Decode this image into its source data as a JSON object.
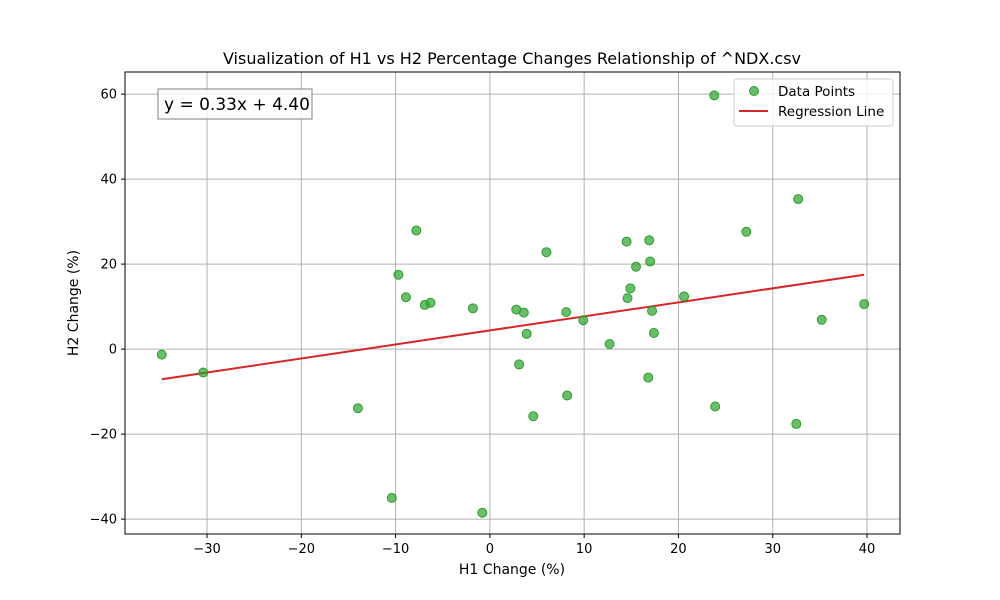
{
  "chart_data": {
    "type": "scatter",
    "title": "Visualization of H1 vs H2 Percentage Changes Relationship of ^NDX.csv",
    "xlabel": "H1 Change (%)",
    "ylabel": "H2 Change (%)",
    "xlim": [
      -38.7,
      43.5
    ],
    "ylim": [
      -43.5,
      65.2
    ],
    "xticks": [
      -30,
      -20,
      -10,
      0,
      10,
      20,
      30,
      40
    ],
    "yticks": [
      -40,
      -20,
      0,
      20,
      40,
      60
    ],
    "grid": true,
    "legend_position": "top-right",
    "equation_label": "y = 0.33x + 4.40",
    "colors": {
      "points": "#2ca02c",
      "regression": "#d62728"
    },
    "series": [
      {
        "name": "Data Points",
        "kind": "scatter",
        "x": [
          -34.8,
          -30.4,
          -14.0,
          -10.4,
          -9.7,
          -8.9,
          -7.8,
          -6.9,
          -6.3,
          -1.8,
          -0.8,
          2.8,
          3.1,
          3.6,
          3.9,
          4.6,
          6.0,
          8.1,
          8.2,
          9.9,
          12.7,
          14.5,
          14.6,
          14.9,
          15.5,
          16.8,
          16.9,
          17.0,
          17.2,
          17.4,
          20.6,
          23.8,
          23.9,
          27.2,
          32.5,
          32.7,
          35.2,
          39.7
        ],
        "y": [
          -1.3,
          -5.5,
          -13.9,
          -35.0,
          17.5,
          12.2,
          27.9,
          10.4,
          10.9,
          9.6,
          -38.5,
          9.3,
          -3.6,
          8.6,
          3.6,
          -15.8,
          22.8,
          8.7,
          -10.9,
          6.8,
          1.2,
          25.3,
          12.0,
          14.3,
          19.4,
          -6.7,
          25.6,
          20.6,
          9.0,
          3.8,
          12.4,
          59.7,
          -13.5,
          27.6,
          -17.6,
          35.3,
          6.9,
          10.6
        ]
      },
      {
        "name": "Regression Line",
        "kind": "line",
        "slope": 0.33,
        "intercept": 4.4,
        "x": [
          -34.8,
          39.7
        ]
      }
    ]
  }
}
